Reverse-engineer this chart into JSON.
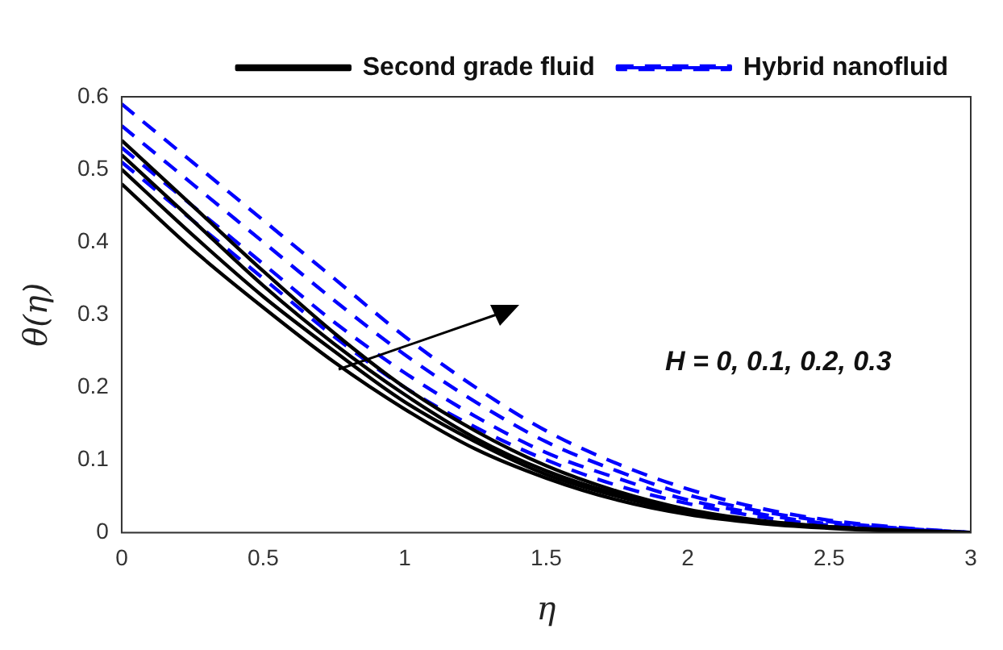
{
  "chart_data": {
    "type": "line",
    "xlabel": "η",
    "ylabel": "θ(η)",
    "x": [
      0,
      0.25,
      0.5,
      0.75,
      1,
      1.25,
      1.5,
      1.75,
      2,
      2.25,
      2.5,
      2.75,
      3
    ],
    "xlim": [
      0,
      3
    ],
    "xticks": [
      0,
      0.5,
      1,
      1.5,
      2,
      2.5,
      3
    ],
    "ylim": [
      0,
      0.6
    ],
    "yticks": [
      0,
      0.1,
      0.2,
      0.3,
      0.4,
      0.5,
      0.6
    ],
    "grid": false,
    "legend": "top right",
    "marker": "none",
    "annotations": [
      "H = 0, 0.1, 0.2, 0.3"
    ],
    "series": [
      {
        "name": "Second grade fluid",
        "color": "#000000",
        "line_style": "solid",
        "values": [
          0.48,
          0.39,
          0.31,
          0.235,
          0.17,
          0.115,
          0.075,
          0.045,
          0.025,
          0.013,
          0.006,
          0.002,
          0
        ]
      },
      {
        "color": "#000000",
        "line_style": "solid",
        "values": [
          0.5,
          0.41,
          0.325,
          0.25,
          0.18,
          0.125,
          0.08,
          0.05,
          0.028,
          0.015,
          0.007,
          0.002,
          0
        ]
      },
      {
        "color": "#000000",
        "line_style": "solid",
        "values": [
          0.52,
          0.43,
          0.34,
          0.26,
          0.19,
          0.13,
          0.085,
          0.053,
          0.03,
          0.016,
          0.008,
          0.003,
          0
        ]
      },
      {
        "color": "#000000",
        "line_style": "solid",
        "values": [
          0.54,
          0.45,
          0.36,
          0.275,
          0.2,
          0.14,
          0.092,
          0.057,
          0.032,
          0.017,
          0.008,
          0.003,
          0
        ]
      },
      {
        "name": "Hybrid nanofluid",
        "color": "#0000ff",
        "line_style": "dashed",
        "values": [
          0.51,
          0.43,
          0.35,
          0.27,
          0.2,
          0.145,
          0.1,
          0.065,
          0.04,
          0.022,
          0.01,
          0.004,
          0
        ]
      },
      {
        "color": "#0000ff",
        "line_style": "dashed",
        "values": [
          0.53,
          0.45,
          0.37,
          0.29,
          0.22,
          0.16,
          0.11,
          0.075,
          0.045,
          0.026,
          0.012,
          0.005,
          0
        ]
      },
      {
        "color": "#0000ff",
        "line_style": "dashed",
        "values": [
          0.56,
          0.48,
          0.4,
          0.32,
          0.245,
          0.18,
          0.125,
          0.085,
          0.052,
          0.03,
          0.015,
          0.006,
          0
        ]
      },
      {
        "color": "#0000ff",
        "line_style": "dashed",
        "values": [
          0.59,
          0.51,
          0.43,
          0.35,
          0.27,
          0.2,
          0.14,
          0.095,
          0.06,
          0.034,
          0.017,
          0.007,
          0
        ]
      }
    ]
  }
}
